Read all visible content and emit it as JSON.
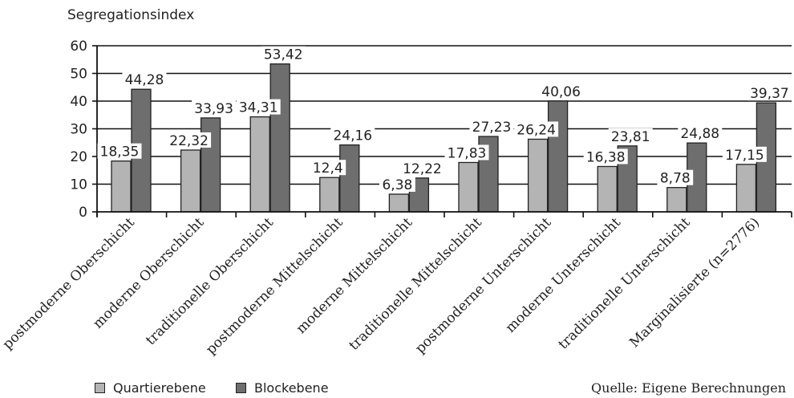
{
  "chart_data": {
    "type": "bar",
    "ylabel": "Segregationsindex",
    "ylim": [
      0,
      60
    ],
    "yticks": [
      0,
      10,
      20,
      30,
      40,
      50,
      60
    ],
    "categories": [
      "postmoderne Oberschicht",
      "moderne Oberschicht",
      "traditionelle Oberschicht",
      "postmoderne Mittelschicht",
      "moderne Mittelschicht",
      "traditionelle Mittelschicht",
      "postmoderne Unterschicht",
      "moderne Unterschicht",
      "traditionelle Unterschicht",
      "Marginalisierte (n=2776)"
    ],
    "series": [
      {
        "name": "Quartierebene",
        "color": "#b4b4b4",
        "values": [
          18.35,
          22.32,
          34.31,
          12.4,
          6.38,
          17.83,
          26.24,
          16.38,
          8.78,
          17.15
        ],
        "labels": [
          "18,35",
          "22,32",
          "34,31",
          "12,4",
          "6,38",
          "17,83",
          "26,24",
          "16,38",
          "8,78",
          "17,15"
        ]
      },
      {
        "name": "Blockebene",
        "color": "#6e6e6e",
        "values": [
          44.28,
          33.93,
          53.42,
          24.16,
          12.22,
          27.23,
          40.06,
          23.81,
          24.88,
          39.37
        ],
        "labels": [
          "44,28",
          "33,93",
          "53,42",
          "24,16",
          "12,22",
          "27,23",
          "40,06",
          "23,81",
          "24,88",
          "39,37"
        ]
      }
    ],
    "grid": true,
    "legend_position": "bottom-left"
  },
  "source_note": "Quelle: Eigene Berechnungen"
}
